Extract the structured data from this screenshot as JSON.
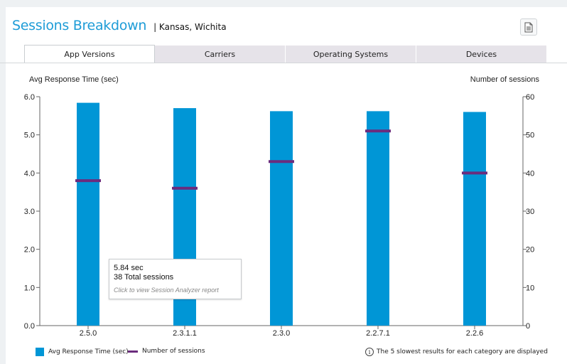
{
  "header": {
    "title": "Sessions Breakdown",
    "subtitle": "| Kansas, Wichita",
    "export_icon": "document-icon"
  },
  "tabs": [
    {
      "label": "App Versions",
      "active": true
    },
    {
      "label": "Carriers",
      "active": false
    },
    {
      "label": "Operating Systems",
      "active": false
    },
    {
      "label": "Devices",
      "active": false
    }
  ],
  "chart_data": {
    "type": "bar",
    "categories": [
      "2.5.0",
      "2.3.1.1",
      "2.3.0",
      "2.2.7.1",
      "2.2.6"
    ],
    "series": [
      {
        "name": "Avg Response Time (sec)",
        "type": "bar",
        "axis": "left",
        "color": "#0096d6",
        "values": [
          5.84,
          5.7,
          5.62,
          5.62,
          5.6
        ]
      },
      {
        "name": "Number of sessions",
        "type": "marker",
        "axis": "right",
        "color": "#6b2c7d",
        "values": [
          38,
          36,
          43,
          51,
          40
        ]
      }
    ],
    "ylabel_left": "Avg Response Time (sec)",
    "ylabel_right": "Number of sessions",
    "ylim_left": [
      0,
      6
    ],
    "ylim_right": [
      0,
      60
    ],
    "yticks_left": [
      "0.0",
      "1.0",
      "2.0",
      "3.0",
      "4.0",
      "5.0",
      "6.0"
    ],
    "yticks_right": [
      "0",
      "10",
      "20",
      "30",
      "40",
      "50",
      "60"
    ],
    "grid": false
  },
  "tooltip": {
    "line1": "5.84 sec",
    "line2": "38 Total sessions",
    "line3": "Click to view Session Analyzer report"
  },
  "legend": {
    "bar_label": "Avg Response Time (sec)",
    "line_label": "Number of sessions",
    "note": "The 5 slowest results for each category are displayed",
    "note_icon": "info-icon"
  }
}
